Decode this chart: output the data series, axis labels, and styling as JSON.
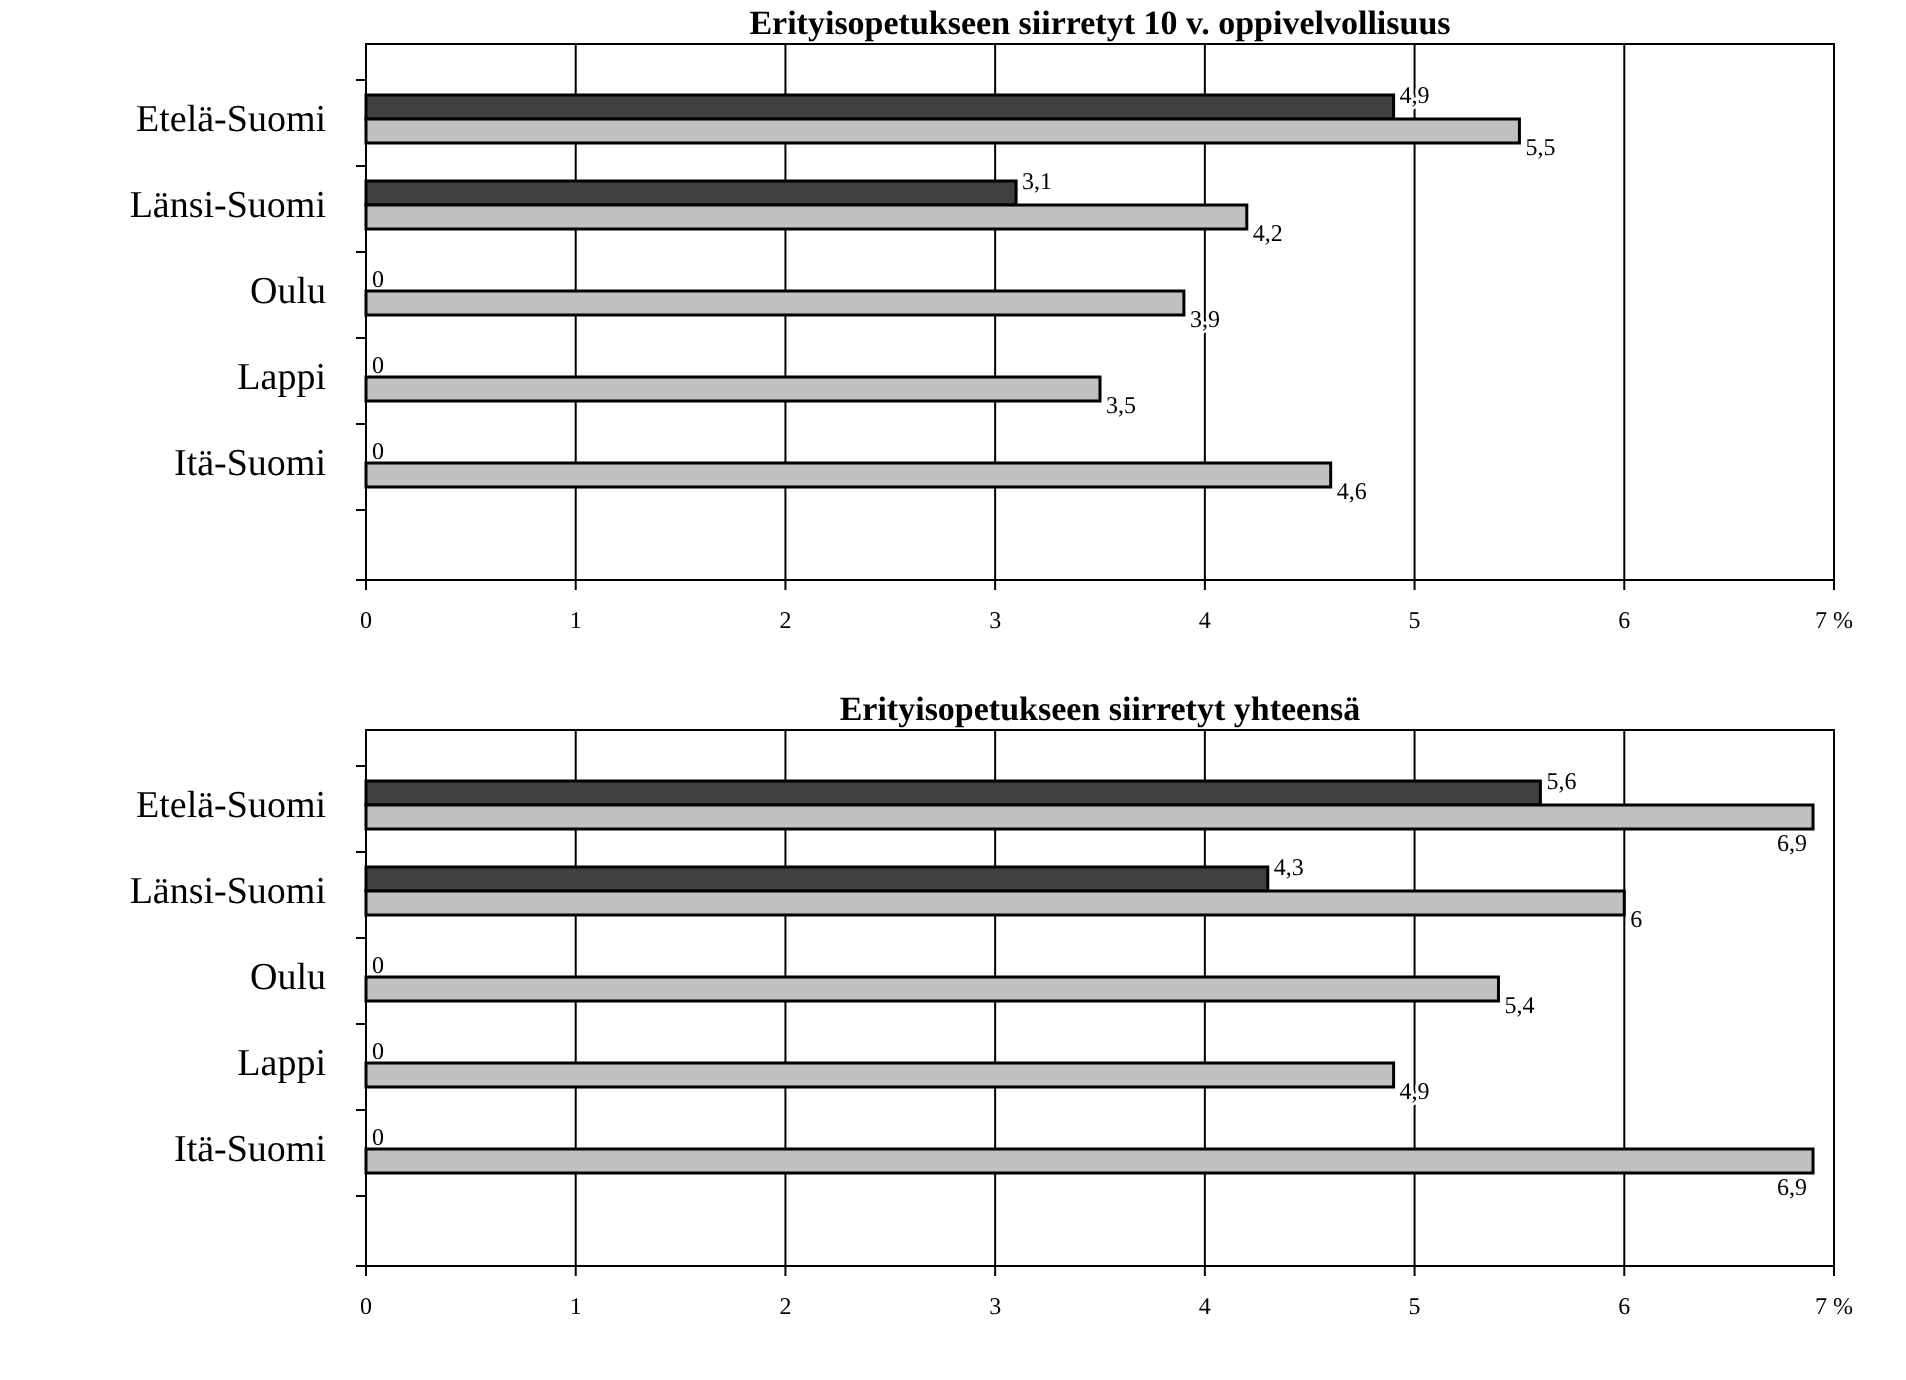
{
  "chart_data": [
    {
      "type": "bar",
      "orientation": "horizontal",
      "title": "Erityisopetukseen siirretyt 10 v. oppivelvollisuus",
      "categories": [
        "Etelä-Suomi",
        "Länsi-Suomi",
        "Oulu",
        "Lappi",
        "Itä-Suomi",
        null
      ],
      "series": [
        {
          "color": "#404040",
          "values": [
            4.9,
            3.1,
            0,
            0,
            0,
            null
          ],
          "value_labels": [
            "4,9",
            "3,1",
            "0",
            "0",
            "0",
            null
          ]
        },
        {
          "color": "#c0c0c0",
          "values": [
            5.5,
            4.2,
            3.9,
            3.5,
            4.6,
            null
          ],
          "value_labels": [
            "5,5",
            "4,2",
            "3,9",
            "3,5",
            "4,6",
            null
          ]
        }
      ],
      "xlim": [
        0,
        7
      ],
      "xticks": [
        0,
        1,
        2,
        3,
        4,
        5,
        6,
        {
          "value": 7,
          "label": "7 %"
        }
      ],
      "grid": "x"
    },
    {
      "type": "bar",
      "orientation": "horizontal",
      "title": "Erityisopetukseen siirretyt yhteensä",
      "categories": [
        "Etelä-Suomi",
        "Länsi-Suomi",
        "Oulu",
        "Lappi",
        "Itä-Suomi",
        null
      ],
      "series": [
        {
          "color": "#404040",
          "values": [
            5.6,
            4.3,
            0,
            0,
            0,
            null
          ],
          "value_labels": [
            "5,6",
            "4,3",
            "0",
            "0",
            "0",
            null
          ]
        },
        {
          "color": "#c0c0c0",
          "values": [
            6.9,
            6,
            5.4,
            4.9,
            6.9,
            null
          ],
          "value_labels": [
            "6,9",
            "6",
            "5,4",
            "4,9",
            "6,9",
            null
          ]
        }
      ],
      "xlim": [
        0,
        7
      ],
      "xticks": [
        0,
        1,
        2,
        3,
        4,
        5,
        6,
        {
          "value": 7,
          "label": "7 %"
        }
      ],
      "grid": "x"
    }
  ]
}
